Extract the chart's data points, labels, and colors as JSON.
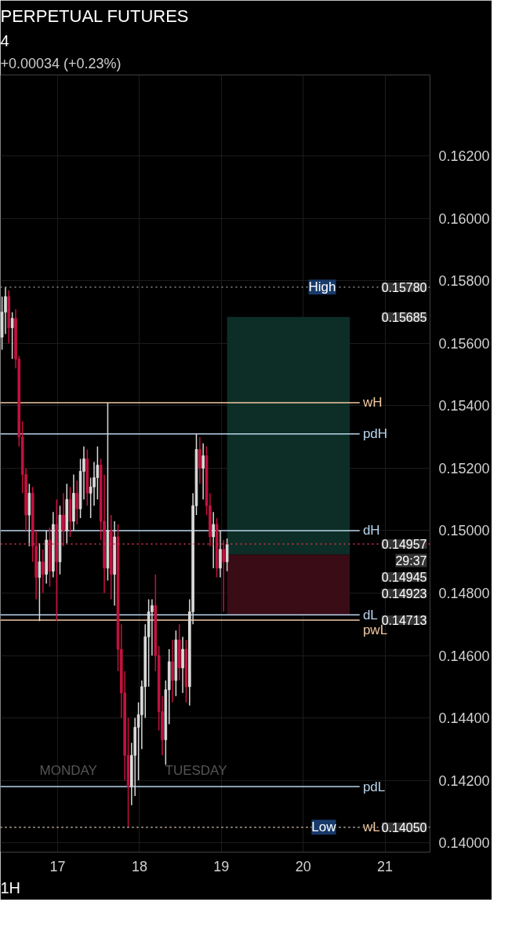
{
  "chart_data": {
    "type": "candlestick",
    "title": "PERPETUAL FUTURES",
    "subtitle": "+0.00034 (+0.23%)",
    "x": [
      16.32,
      16.362,
      16.403,
      16.445,
      16.487,
      16.528,
      16.57,
      16.612,
      16.653,
      16.695,
      16.737,
      16.778,
      16.82,
      16.862,
      16.903,
      16.945,
      16.987,
      17.028,
      17.07,
      17.112,
      17.153,
      17.195,
      17.237,
      17.278,
      17.32,
      17.362,
      17.403,
      17.445,
      17.487,
      17.528,
      17.57,
      17.612,
      17.653,
      17.695,
      17.737,
      17.778,
      17.82,
      17.862,
      17.903,
      17.945,
      17.987,
      18.028,
      18.07,
      18.112,
      18.153,
      18.195,
      18.237,
      18.278,
      18.32,
      18.362,
      18.403,
      18.445,
      18.487,
      18.528,
      18.57,
      18.612,
      18.653,
      18.695,
      18.737,
      18.778,
      18.82,
      18.862,
      18.903,
      18.945,
      18.987,
      19.028,
      19.07
    ],
    "ohlc": [
      [
        0.1562,
        0.1575,
        0.1558,
        0.157
      ],
      [
        0.157,
        0.1578,
        0.1563,
        0.1575
      ],
      [
        0.1575,
        0.1577,
        0.156,
        0.1565
      ],
      [
        0.1565,
        0.157,
        0.1555,
        0.1568
      ],
      [
        0.1568,
        0.1571,
        0.1552,
        0.1555
      ],
      [
        0.1555,
        0.1556,
        0.1527,
        0.153
      ],
      [
        0.153,
        0.1535,
        0.1512,
        0.1518
      ],
      [
        0.1518,
        0.152,
        0.15,
        0.1505
      ],
      [
        0.1505,
        0.1515,
        0.1495,
        0.1512
      ],
      [
        0.1512,
        0.1514,
        0.149,
        0.1495
      ],
      [
        0.1495,
        0.15,
        0.1478,
        0.1485
      ],
      [
        0.1485,
        0.1496,
        0.1471,
        0.149
      ],
      [
        0.149,
        0.1494,
        0.148,
        0.1486
      ],
      [
        0.1486,
        0.15,
        0.1483,
        0.1497
      ],
      [
        0.1497,
        0.1501,
        0.1482,
        0.1487
      ],
      [
        0.1487,
        0.1506,
        0.1485,
        0.1502
      ],
      [
        0.1502,
        0.151,
        0.1471,
        0.149
      ],
      [
        0.149,
        0.1508,
        0.1486,
        0.1505
      ],
      [
        0.1505,
        0.1512,
        0.1495,
        0.15
      ],
      [
        0.15,
        0.1515,
        0.1496,
        0.151
      ],
      [
        0.151,
        0.1514,
        0.1498,
        0.1503
      ],
      [
        0.1503,
        0.1518,
        0.15,
        0.1512
      ],
      [
        0.1512,
        0.1516,
        0.1502,
        0.1507
      ],
      [
        0.1507,
        0.1523,
        0.1504,
        0.1519
      ],
      [
        0.1519,
        0.1527,
        0.151,
        0.1523
      ],
      [
        0.1523,
        0.1526,
        0.1508,
        0.1512
      ],
      [
        0.1512,
        0.1517,
        0.1504,
        0.1514
      ],
      [
        0.1514,
        0.1522,
        0.1508,
        0.1517
      ],
      [
        0.1517,
        0.1527,
        0.151,
        0.1521
      ],
      [
        0.1521,
        0.1523,
        0.1497,
        0.1503
      ],
      [
        0.1503,
        0.1518,
        0.148,
        0.1488
      ],
      [
        0.1488,
        0.1541,
        0.1484,
        0.15
      ],
      [
        0.15,
        0.1505,
        0.1478,
        0.1486
      ],
      [
        0.1486,
        0.1503,
        0.1476,
        0.1498
      ],
      [
        0.1498,
        0.1502,
        0.1455,
        0.1462
      ],
      [
        0.1462,
        0.147,
        0.144,
        0.1448
      ],
      [
        0.1448,
        0.1455,
        0.142,
        0.1428
      ],
      [
        0.1428,
        0.144,
        0.1405,
        0.1418
      ],
      [
        0.1418,
        0.1432,
        0.1412,
        0.1428
      ],
      [
        0.1428,
        0.144,
        0.1415,
        0.1437
      ],
      [
        0.1437,
        0.1445,
        0.142,
        0.1441
      ],
      [
        0.1441,
        0.1452,
        0.143,
        0.145
      ],
      [
        0.145,
        0.147,
        0.144,
        0.1466
      ],
      [
        0.1466,
        0.1478,
        0.145,
        0.1474
      ],
      [
        0.1474,
        0.1478,
        0.146,
        0.1476
      ],
      [
        0.1476,
        0.1486,
        0.1455,
        0.146
      ],
      [
        0.146,
        0.1463,
        0.1436,
        0.1442
      ],
      [
        0.1442,
        0.1447,
        0.1428,
        0.1433
      ],
      [
        0.1433,
        0.1452,
        0.1425,
        0.1449
      ],
      [
        0.1449,
        0.1462,
        0.1438,
        0.1458
      ],
      [
        0.1458,
        0.1465,
        0.1445,
        0.1452
      ],
      [
        0.1452,
        0.1468,
        0.1447,
        0.1465
      ],
      [
        0.1465,
        0.147,
        0.1452,
        0.1456
      ],
      [
        0.1456,
        0.1466,
        0.1448,
        0.1462
      ],
      [
        0.1462,
        0.1465,
        0.1445,
        0.145
      ],
      [
        0.145,
        0.1478,
        0.1444,
        0.1474
      ],
      [
        0.1474,
        0.1512,
        0.147,
        0.1508
      ],
      [
        0.1508,
        0.1531,
        0.1505,
        0.1526
      ],
      [
        0.1526,
        0.153,
        0.1515,
        0.152
      ],
      [
        0.152,
        0.1528,
        0.151,
        0.1524
      ],
      [
        0.1524,
        0.1527,
        0.1505,
        0.1508
      ],
      [
        0.1508,
        0.1512,
        0.1495,
        0.1498
      ],
      [
        0.1498,
        0.1506,
        0.1488,
        0.1502
      ],
      [
        0.1502,
        0.1504,
        0.1485,
        0.1488
      ],
      [
        0.1488,
        0.15,
        0.1485,
        0.1494
      ],
      [
        0.1494,
        0.1497,
        0.1474,
        0.149
      ],
      [
        0.149,
        0.14975,
        0.1487,
        0.14957
      ]
    ],
    "colors": [
      "#d9d9d9",
      "#d9d9d9",
      "#c2133f",
      "#d9d9d9",
      "#c2133f",
      "#c2133f",
      "#c2133f",
      "#c2133f",
      "#d9d9d9",
      "#c2133f",
      "#c2133f",
      "#d9d9d9",
      "#c2133f",
      "#d9d9d9",
      "#c2133f",
      "#d9d9d9",
      "#c2133f",
      "#d9d9d9",
      "#c2133f",
      "#d9d9d9",
      "#c2133f",
      "#d9d9d9",
      "#c2133f",
      "#d9d9d9",
      "#d9d9d9",
      "#c2133f",
      "#d9d9d9",
      "#d9d9d9",
      "#d9d9d9",
      "#c2133f",
      "#c2133f",
      "#d9d9d9",
      "#c2133f",
      "#d9d9d9",
      "#c2133f",
      "#c2133f",
      "#c2133f",
      "#c2133f",
      "#d9d9d9",
      "#d9d9d9",
      "#d9d9d9",
      "#d9d9d9",
      "#d9d9d9",
      "#d9d9d9",
      "#d9d9d9",
      "#c2133f",
      "#c2133f",
      "#c2133f",
      "#d9d9d9",
      "#d9d9d9",
      "#c2133f",
      "#d9d9d9",
      "#c2133f",
      "#d9d9d9",
      "#c2133f",
      "#d9d9d9",
      "#d9d9d9",
      "#d9d9d9",
      "#c2133f",
      "#d9d9d9",
      "#c2133f",
      "#c2133f",
      "#d9d9d9",
      "#c2133f",
      "#d9d9d9",
      "#c2133f",
      "#d9d9d9"
    ],
    "xlim": [
      16.3,
      21.55
    ],
    "xticks": [
      17,
      18,
      19,
      20,
      21
    ],
    "ylim": [
      0.1397,
      0.1646
    ],
    "yticks": [
      {
        "value": 0.14,
        "label": "0.14000"
      },
      {
        "value": 0.142,
        "label": "0.14200"
      },
      {
        "value": 0.144,
        "label": "0.14400"
      },
      {
        "value": 0.146,
        "label": "0.14600"
      },
      {
        "value": 0.148,
        "label": "0.14800"
      },
      {
        "value": 0.15,
        "label": "0.15000"
      },
      {
        "value": 0.152,
        "label": "0.15200"
      },
      {
        "value": 0.154,
        "label": "0.15400"
      },
      {
        "value": 0.156,
        "label": "0.15600"
      },
      {
        "value": 0.158,
        "label": "0.15800"
      },
      {
        "value": 0.16,
        "label": "0.16000"
      },
      {
        "value": 0.162,
        "label": "0.16200"
      }
    ],
    "grid": true,
    "ref_lines": [
      {
        "axis": "y",
        "value": 0.1578,
        "label": "High",
        "color": "#8a8a8a",
        "line_style": "dotted"
      },
      {
        "axis": "y",
        "value": 0.1541,
        "label": "wH",
        "color": "#f2c8a0"
      },
      {
        "axis": "y",
        "value": 0.1531,
        "label": "pdH",
        "color": "#b8d4ec"
      },
      {
        "axis": "y",
        "value": 0.15,
        "label": "dH",
        "color": "#b8d4ec"
      },
      {
        "axis": "y",
        "value": 0.14957,
        "label": null,
        "color": "#e0304f",
        "line_style": "dotted"
      },
      {
        "axis": "y",
        "value": 0.1473,
        "label": "dL",
        "color": "#b8d4ec"
      },
      {
        "axis": "y",
        "value": 0.14713,
        "label": "pwL",
        "color": "#f2c8a0"
      },
      {
        "axis": "y",
        "value": 0.1418,
        "label": "pdL",
        "color": "#b8d4ec"
      },
      {
        "axis": "y",
        "value": 0.1405,
        "label": "wL",
        "color": "#f2c8a0",
        "line_style": "dotted"
      },
      {
        "axis": "y",
        "value": 0.1405,
        "label": "Low",
        "color": "#8a8a8a",
        "line_style": "dotted"
      }
    ],
    "bands": [
      {
        "axis": "y",
        "from": 0.14923,
        "to": 0.15685,
        "color": "#0c2e26",
        "label": "0.15685"
      },
      {
        "axis": "y",
        "from": 0.1473,
        "to": 0.14923,
        "color": "#3a0c16",
        "label": "0.14923"
      }
    ],
    "annotations": [
      {
        "text": "0.15780",
        "y": 0.1578
      },
      {
        "text": "0.14957",
        "y": 0.14957
      },
      {
        "text": "29:37",
        "y": 0.14955
      },
      {
        "text": "0.14945",
        "y": 0.14945
      },
      {
        "text": "0.14050",
        "y": 0.1405
      },
      "MONDAY",
      "TUESDAY",
      "4",
      "1H",
      "0.14713"
    ]
  }
}
